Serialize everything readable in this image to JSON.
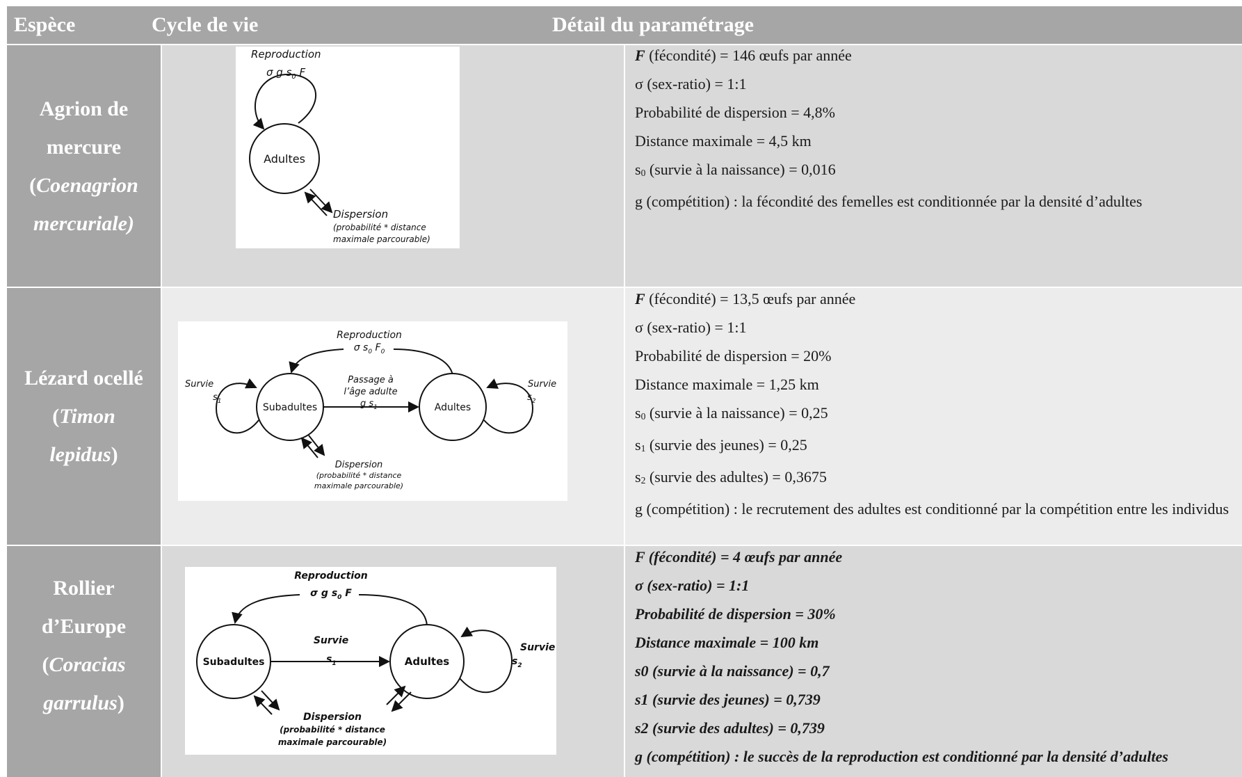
{
  "header": {
    "col1": "Espèce",
    "col2": "Cycle de vie",
    "col3": "Détail du paramétrage"
  },
  "rows": [
    {
      "species": {
        "line1": "Agrion de",
        "line2": "mercure",
        "sci_open": "(",
        "sci1": "Coenagrion",
        "sci2": "mercuriale)"
      },
      "diagram": {
        "reproduction": "Reproduction",
        "formula": "σ g s",
        "formula_sub": "0",
        "formula_tail": " F",
        "adults": "Adultes",
        "dispersion": "Dispersion",
        "disp_line1": "(probabilité * distance",
        "disp_line2": "maximale parcourable)"
      },
      "params": {
        "p1_head": "F",
        "p1_tail": " (fécondité) = 146 œufs par année",
        "p2": "σ (sex-ratio) = 1:1",
        "p3": "Probabilité de dispersion = 4,8%",
        "p4": "Distance maximale = 4,5 km",
        "p5_head": "s",
        "p5_sub": "0",
        "p5_tail": " (survie à la naissance) = 0,016",
        "p6": "g (compétition) : la fécondité des femelles est conditionnée par la densité d’adultes"
      }
    },
    {
      "species": {
        "line1": "Lézard ocellé",
        "sci_open": "(",
        "sci1": "Timon",
        "sci2": "lepidus",
        "sci_close": ")"
      },
      "diagram": {
        "reproduction": "Reproduction",
        "formula": "σ s",
        "formula_sub": "0",
        "formula_tail": " F",
        "formula_tail_sub": "0",
        "passage1": "Passage à",
        "passage2": "l’âge adulte",
        "gs": "g s",
        "gs_sub": "1",
        "subadults": "Subadultes",
        "adults": "Adultes",
        "survie_left": "Survie",
        "s1": "s",
        "s1_sub": "1",
        "survie_right": "Survie",
        "s2": "s",
        "s2_sub": "2",
        "dispersion": "Dispersion",
        "disp_line1": "(probabilité * distance",
        "disp_line2": "maximale parcourable)"
      },
      "params": {
        "p1_head": "F",
        "p1_tail": " (fécondité) = 13,5 œufs par année",
        "p2": "σ (sex-ratio) = 1:1",
        "p3": "Probabilité de dispersion = 20%",
        "p4": "Distance maximale = 1,25 km",
        "p5_head": "s",
        "p5_sub": "0",
        "p5_tail": " (survie à la naissance) = 0,25",
        "p6_head": "s",
        "p6_sub": "1",
        "p6_tail": " (survie des jeunes) = 0,25",
        "p7_head": "s",
        "p7_sub": "2",
        "p7_tail": " (survie des adultes) = 0,3675",
        "p8": "g (compétition) : le recrutement des adultes est conditionné par la compétition entre les individus"
      }
    },
    {
      "species": {
        "line1": "Rollier",
        "line2": "d’Europe",
        "sci_open": "(",
        "sci1": "Coracias",
        "sci2": "garrulus",
        "sci_close": ")"
      },
      "diagram": {
        "reproduction": "Reproduction",
        "formula": "σ g s",
        "formula_sub": "0",
        "formula_tail": " F",
        "subadults": "Subadultes",
        "adults": "Adultes",
        "survie_mid": "Survie",
        "s1": "s",
        "s1_sub": "1",
        "survie_right": "Survie",
        "s2": "s",
        "s2_sub": "2",
        "dispersion": "Dispersion",
        "disp_line1": "(probabilité * distance",
        "disp_line2": "maximale parcourable)"
      },
      "params": {
        "p1": "F (fécondité) = 4 œufs par année",
        "p2": "σ (sex-ratio) = 1:1",
        "p3": "Probabilité de dispersion = 30%",
        "p4": "Distance maximale = 100 km",
        "p5": "s0 (survie à la naissance) = 0,7",
        "p6": "s1 (survie des jeunes) = 0,739",
        "p7": "s2 (survie des adultes) = 0,739",
        "p8": "g (compétition) : le succès de la reproduction est conditionné par la densité d’adultes"
      }
    }
  ]
}
